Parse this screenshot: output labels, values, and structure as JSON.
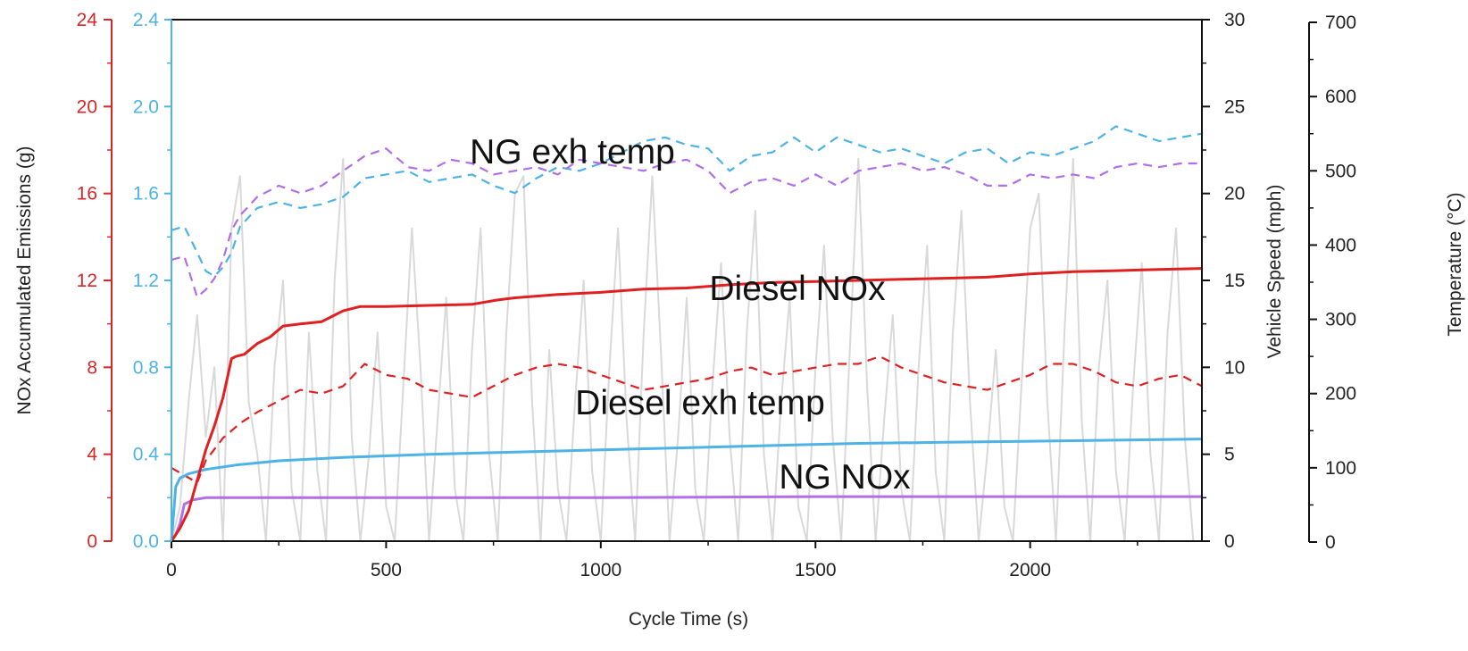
{
  "chart_data": {
    "type": "line",
    "xlabel": "Cycle Time (s)",
    "xlim": [
      0,
      2400
    ],
    "x_ticks": [
      0,
      500,
      1000,
      1500,
      2000
    ],
    "axes": {
      "nox_red": {
        "label": "NOx Accumulated Emissions (g)",
        "range": [
          0,
          24
        ],
        "ticks": [
          0,
          4,
          8,
          12,
          16,
          20,
          24
        ],
        "color": "#d62728"
      },
      "nox_blue": {
        "range": [
          0,
          2.4
        ],
        "ticks": [
          "0.0",
          "0.4",
          "0.8",
          "1.2",
          "1.6",
          "2.0",
          "2.4"
        ],
        "color": "#4db3e6"
      },
      "speed": {
        "label": "Vehicle Speed (mph)",
        "range": [
          0,
          30
        ],
        "ticks": [
          0,
          5,
          10,
          15,
          20,
          25,
          30
        ],
        "color": "#222222"
      },
      "temperature": {
        "label": "Temperature (°C)",
        "range": [
          0,
          700
        ],
        "ticks": [
          0,
          100,
          200,
          300,
          400,
          500,
          600,
          700
        ],
        "color": "#222222"
      }
    },
    "annotations": [
      "NG exh temp",
      "Diesel NOx",
      "Diesel exh temp",
      "NG NOx"
    ],
    "series": [
      {
        "axis": "nox_red",
        "color": "#e02020",
        "style": "solid",
        "x": [
          0,
          20,
          40,
          60,
          80,
          100,
          120,
          140,
          150,
          170,
          200,
          230,
          260,
          300,
          350,
          380,
          400,
          440,
          500,
          600,
          700,
          760,
          800,
          900,
          1000,
          1100,
          1200,
          1300,
          1400,
          1500,
          1600,
          1700,
          1800,
          1900,
          2000,
          2100,
          2200,
          2300,
          2400
        ],
        "y": [
          0,
          0.6,
          1.4,
          2.8,
          4.2,
          5.3,
          6.6,
          8.4,
          8.5,
          8.6,
          9.1,
          9.4,
          9.9,
          10.0,
          10.1,
          10.4,
          10.6,
          10.8,
          10.8,
          10.85,
          10.9,
          11.1,
          11.2,
          11.35,
          11.45,
          11.6,
          11.65,
          11.8,
          11.9,
          11.95,
          12.0,
          12.05,
          12.1,
          12.15,
          12.3,
          12.4,
          12.45,
          12.5,
          12.55
        ]
      },
      {
        "axis": "nox_blue",
        "color": "#4db3e6",
        "style": "solid",
        "x": [
          0,
          10,
          20,
          40,
          80,
          150,
          250,
          400,
          600,
          800,
          1000,
          1200,
          1400,
          1600,
          1800,
          2000,
          2200,
          2400
        ],
        "y": [
          0,
          0.25,
          0.29,
          0.31,
          0.33,
          0.35,
          0.37,
          0.385,
          0.4,
          0.41,
          0.42,
          0.43,
          0.44,
          0.45,
          0.455,
          0.46,
          0.465,
          0.47
        ]
      },
      {
        "axis": "nox_blue",
        "color": "#b06ee8",
        "style": "solid",
        "x": [
          0,
          10,
          20,
          30,
          50,
          80,
          150,
          400,
          1000,
          1500,
          2000,
          2400
        ],
        "y": [
          0,
          0.03,
          0.08,
          0.17,
          0.19,
          0.2,
          0.2,
          0.2,
          0.2,
          0.205,
          0.205,
          0.205
        ]
      },
      {
        "axis": "temperature",
        "color": "#4db3e6",
        "style": "dashed",
        "x": [
          0,
          30,
          60,
          80,
          100,
          120,
          140,
          160,
          200,
          250,
          300,
          350,
          400,
          450,
          500,
          550,
          600,
          650,
          700,
          750,
          800,
          850,
          900,
          950,
          1000,
          1050,
          1100,
          1150,
          1200,
          1250,
          1300,
          1350,
          1400,
          1450,
          1500,
          1550,
          1600,
          1650,
          1700,
          1750,
          1800,
          1850,
          1900,
          1950,
          2000,
          2050,
          2100,
          2150,
          2200,
          2250,
          2300,
          2350,
          2400
        ],
        "y": [
          420,
          425,
          390,
          365,
          358,
          370,
          390,
          425,
          450,
          458,
          450,
          455,
          465,
          490,
          495,
          500,
          485,
          490,
          495,
          480,
          470,
          490,
          505,
          500,
          510,
          525,
          540,
          545,
          535,
          530,
          500,
          520,
          525,
          545,
          525,
          545,
          535,
          525,
          530,
          520,
          510,
          525,
          530,
          510,
          525,
          520,
          530,
          540,
          560,
          550,
          540,
          545,
          550
        ]
      },
      {
        "axis": "temperature",
        "color": "#b06ee8",
        "style": "dashed",
        "x": [
          0,
          30,
          60,
          80,
          100,
          120,
          140,
          160,
          200,
          250,
          300,
          350,
          400,
          450,
          500,
          550,
          600,
          650,
          700,
          750,
          800,
          850,
          900,
          950,
          1000,
          1050,
          1100,
          1150,
          1200,
          1250,
          1300,
          1350,
          1400,
          1450,
          1500,
          1550,
          1600,
          1650,
          1700,
          1750,
          1800,
          1850,
          1900,
          1950,
          2000,
          2050,
          2100,
          2150,
          2200,
          2250,
          2300,
          2350,
          2400
        ],
        "y": [
          380,
          385,
          330,
          340,
          355,
          380,
          420,
          440,
          465,
          480,
          470,
          480,
          500,
          520,
          530,
          505,
          500,
          515,
          510,
          495,
          500,
          505,
          495,
          515,
          510,
          505,
          500,
          510,
          515,
          500,
          470,
          485,
          490,
          480,
          495,
          480,
          500,
          505,
          510,
          500,
          505,
          495,
          480,
          480,
          495,
          490,
          495,
          490,
          505,
          510,
          505,
          510,
          510
        ]
      },
      {
        "axis": "temperature",
        "color": "#e02020",
        "style": "dashed",
        "x": [
          0,
          30,
          60,
          80,
          100,
          120,
          140,
          160,
          200,
          250,
          300,
          350,
          400,
          450,
          500,
          550,
          600,
          650,
          700,
          750,
          800,
          850,
          900,
          950,
          1000,
          1050,
          1100,
          1150,
          1200,
          1250,
          1300,
          1350,
          1400,
          1450,
          1500,
          1550,
          1600,
          1650,
          1700,
          1750,
          1800,
          1850,
          1900,
          1950,
          2000,
          2050,
          2100,
          2150,
          2200,
          2250,
          2300,
          2350,
          2400
        ],
        "y": [
          100,
          90,
          80,
          110,
          125,
          140,
          150,
          160,
          175,
          190,
          205,
          200,
          210,
          240,
          225,
          220,
          205,
          200,
          195,
          210,
          225,
          235,
          240,
          235,
          225,
          215,
          205,
          210,
          215,
          220,
          230,
          235,
          225,
          230,
          235,
          240,
          240,
          250,
          235,
          225,
          215,
          210,
          205,
          215,
          225,
          240,
          240,
          230,
          215,
          210,
          220,
          225,
          210
        ]
      },
      {
        "axis": "speed",
        "color": "#d9d9d9",
        "style": "solid",
        "x": [
          0,
          20,
          40,
          60,
          80,
          100,
          120,
          140,
          160,
          180,
          200,
          220,
          240,
          260,
          280,
          300,
          320,
          340,
          360,
          380,
          400,
          420,
          440,
          460,
          480,
          500,
          520,
          540,
          560,
          580,
          600,
          620,
          640,
          660,
          680,
          700,
          720,
          740,
          760,
          780,
          800,
          820,
          840,
          860,
          880,
          900,
          920,
          940,
          960,
          980,
          1000,
          1020,
          1040,
          1060,
          1080,
          1100,
          1120,
          1140,
          1160,
          1180,
          1200,
          1220,
          1240,
          1260,
          1280,
          1300,
          1320,
          1340,
          1360,
          1380,
          1400,
          1420,
          1440,
          1460,
          1480,
          1500,
          1520,
          1540,
          1560,
          1580,
          1600,
          1620,
          1640,
          1660,
          1680,
          1700,
          1720,
          1740,
          1760,
          1780,
          1800,
          1820,
          1840,
          1860,
          1880,
          1900,
          1920,
          1940,
          1960,
          1980,
          2000,
          2020,
          2040,
          2060,
          2080,
          2100,
          2120,
          2140,
          2160,
          2180,
          2200,
          2220,
          2240,
          2260,
          2280,
          2300,
          2320,
          2340,
          2360,
          2380,
          2400
        ],
        "y": [
          0,
          2,
          8,
          13,
          6,
          10,
          0,
          18,
          21,
          8,
          5,
          0,
          10,
          15,
          3,
          0,
          12,
          4,
          0,
          15,
          22,
          6,
          0,
          5,
          12,
          2,
          0,
          9,
          18,
          10,
          0,
          7,
          14,
          3,
          0,
          11,
          18,
          5,
          0,
          12,
          20,
          21,
          8,
          0,
          11,
          3,
          0,
          8,
          15,
          4,
          0,
          10,
          18,
          7,
          0,
          12,
          21,
          11,
          0,
          6,
          14,
          3,
          0,
          9,
          16,
          6,
          0,
          12,
          19,
          5,
          0,
          8,
          14,
          2,
          0,
          10,
          17,
          6,
          0,
          11,
          22,
          9,
          0,
          7,
          13,
          3,
          0,
          10,
          17,
          4,
          0,
          12,
          19,
          8,
          0,
          5,
          11,
          2,
          0,
          9,
          18,
          20,
          8,
          0,
          12,
          22,
          7,
          0,
          10,
          15,
          4,
          0,
          9,
          16,
          5,
          0,
          12,
          18,
          6,
          0,
          0
        ]
      }
    ]
  }
}
